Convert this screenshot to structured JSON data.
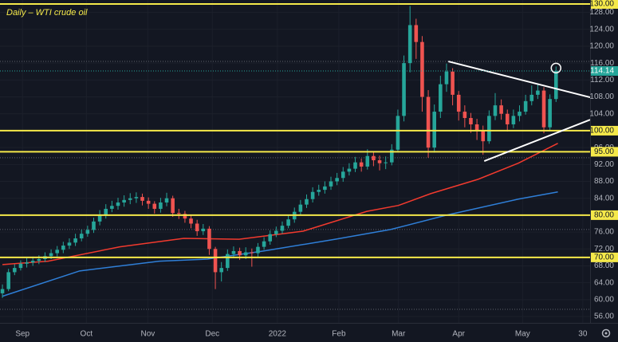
{
  "chart_data": {
    "type": "candlestick",
    "title": "Daily – WTI crude oil",
    "up_color": "#26a69a",
    "down_color": "#ef5350",
    "x": [
      0,
      1,
      2,
      3,
      4,
      5,
      6,
      7,
      8,
      9,
      10,
      11,
      12,
      13,
      14,
      15,
      16,
      17,
      18,
      19,
      20,
      21,
      22,
      23,
      24,
      25,
      26,
      27,
      28,
      29,
      30,
      31,
      32,
      33,
      34,
      35,
      36,
      37,
      38,
      39,
      40,
      41,
      42,
      43,
      44,
      45,
      46,
      47,
      48,
      49,
      50,
      51,
      52,
      53,
      54,
      55,
      56,
      57,
      58,
      59,
      60,
      61,
      62,
      63,
      64,
      65,
      66,
      67,
      68,
      69,
      70,
      71,
      72,
      73,
      74,
      75,
      76,
      77,
      78,
      79,
      80,
      81,
      82,
      83,
      84,
      85,
      86,
      87,
      88,
      89,
      90,
      91
    ],
    "open": [
      61.5,
      62.5,
      66.5,
      67.5,
      68.5,
      68.8,
      69.2,
      69.6,
      70.3,
      71.0,
      71.8,
      72.8,
      73.5,
      74.5,
      75.6,
      76.5,
      78.5,
      80.0,
      81.5,
      82.2,
      83.0,
      83.6,
      84.0,
      84.3,
      83.4,
      82.7,
      81.5,
      83.0,
      84.0,
      80.5,
      80.3,
      79.2,
      78.0,
      76.2,
      76.8,
      72.0,
      66.5,
      67.5,
      70.8,
      71.5,
      70.5,
      71.2,
      71.0,
      72.5,
      73.8,
      75.5,
      76.3,
      77.5,
      79.0,
      80.8,
      82.5,
      83.8,
      85.5,
      86.0,
      86.8,
      88.0,
      88.8,
      90.3,
      91.0,
      92.5,
      91.5,
      94.0,
      93.0,
      92.3,
      92.5,
      95.5,
      103.5,
      116.0,
      125.0,
      121.0,
      108.0,
      96.0,
      104.5,
      111.0,
      114.0,
      108.5,
      104.5,
      103.0,
      101.5,
      100.0,
      97.5,
      103.5,
      106.0,
      104.0,
      101.5,
      103.5,
      104.5,
      107.0,
      108.5,
      109.5,
      100.8,
      107.5
    ],
    "high": [
      63.6,
      67.3,
      68.4,
      69.3,
      69.8,
      70.2,
      70.5,
      71.2,
      71.9,
      72.7,
      73.7,
      74.5,
      75.6,
      76.6,
      77.5,
      79.4,
      81.2,
      82.6,
      83.4,
      84.1,
      84.7,
      85.2,
      85.4,
      85.1,
      84.2,
      83.3,
      84.1,
      85.3,
      84.6,
      81.5,
      81.0,
      80.1,
      78.9,
      77.9,
      77.4,
      72.5,
      68.9,
      71.9,
      72.6,
      72.3,
      72.4,
      72.1,
      73.4,
      74.8,
      76.4,
      77.3,
      78.5,
      80.0,
      81.8,
      83.6,
      84.9,
      86.6,
      87.2,
      88.0,
      89.1,
      90.0,
      91.4,
      92.3,
      93.8,
      93.4,
      95.6,
      95.0,
      94.1,
      93.9,
      96.8,
      105.0,
      117.8,
      129.5,
      126.5,
      122.4,
      109.6,
      106.2,
      113.0,
      115.9,
      114.8,
      109.4,
      106.0,
      104.2,
      102.8,
      101.2,
      104.8,
      108.9,
      107.4,
      105.0,
      105.0,
      106.0,
      108.5,
      110.7,
      111.0,
      110.3,
      108.6,
      115.2
    ],
    "low": [
      60.4,
      62.0,
      65.8,
      66.9,
      67.6,
      68.0,
      68.4,
      68.9,
      69.6,
      70.2,
      71.0,
      72.0,
      72.7,
      73.8,
      74.9,
      75.8,
      77.6,
      79.2,
      80.7,
      81.3,
      82.0,
      82.6,
      82.9,
      82.3,
      81.5,
      80.4,
      80.6,
      82.1,
      79.6,
      79.1,
      78.2,
      76.9,
      75.1,
      75.3,
      70.6,
      62.5,
      64.3,
      66.8,
      69.8,
      69.4,
      69.6,
      67.8,
      70.2,
      71.8,
      73.0,
      74.8,
      75.6,
      76.9,
      78.2,
      80.1,
      81.7,
      83.0,
      84.6,
      85.1,
      86.0,
      87.1,
      87.9,
      89.4,
      90.2,
      90.3,
      90.8,
      91.6,
      90.6,
      90.9,
      91.8,
      95.0,
      102.2,
      113.8,
      117.0,
      104.5,
      93.6,
      94.8,
      103.0,
      109.2,
      106.0,
      102.4,
      100.8,
      99.5,
      97.8,
      94.3,
      96.9,
      102.5,
      102.6,
      99.8,
      100.6,
      102.2,
      103.8,
      106.0,
      107.5,
      99.4,
      100.0,
      106.8
    ],
    "close": [
      62.5,
      66.5,
      67.5,
      68.5,
      68.8,
      69.2,
      69.6,
      70.3,
      71.0,
      71.8,
      72.8,
      73.5,
      74.5,
      75.6,
      76.5,
      78.5,
      80.0,
      81.5,
      82.2,
      83.0,
      83.6,
      84.0,
      84.3,
      83.4,
      82.7,
      81.5,
      83.0,
      84.0,
      80.5,
      80.3,
      79.2,
      78.0,
      76.2,
      76.8,
      72.0,
      66.5,
      67.5,
      70.8,
      71.5,
      70.5,
      71.2,
      71.0,
      72.5,
      73.8,
      75.5,
      76.3,
      77.5,
      79.0,
      80.8,
      82.5,
      83.8,
      85.5,
      86.0,
      86.8,
      88.0,
      88.8,
      90.3,
      91.0,
      92.5,
      91.5,
      94.0,
      93.0,
      92.3,
      92.5,
      95.5,
      103.5,
      116.0,
      125.0,
      121.0,
      108.0,
      96.0,
      104.5,
      111.0,
      114.0,
      108.5,
      104.5,
      103.0,
      101.5,
      100.0,
      97.5,
      103.5,
      106.0,
      104.0,
      101.5,
      103.5,
      104.5,
      107.0,
      108.5,
      109.5,
      100.8,
      107.5,
      114.14
    ],
    "xlim": [
      -0.4,
      96.6
    ],
    "xticks": [
      {
        "value": 3.3,
        "label": "Sep"
      },
      {
        "value": 13.8,
        "label": "Oct"
      },
      {
        "value": 23.9,
        "label": "Nov"
      },
      {
        "value": 34.5,
        "label": "Dec"
      },
      {
        "value": 45.2,
        "label": "2022"
      },
      {
        "value": 55.3,
        "label": "Feb"
      },
      {
        "value": 65.1,
        "label": "Mar"
      },
      {
        "value": 75.0,
        "label": "Apr"
      },
      {
        "value": 85.5,
        "label": "May"
      },
      {
        "value": 95.4,
        "label": "30"
      }
    ],
    "ylim": [
      54.5,
      130.94
    ],
    "yticks": [
      {
        "value": 56,
        "label": "56.00"
      },
      {
        "value": 60,
        "label": "60.00"
      },
      {
        "value": 64,
        "label": "64.00"
      },
      {
        "value": 68,
        "label": "68.00"
      },
      {
        "value": 72,
        "label": "72.00"
      },
      {
        "value": 76,
        "label": "76.00"
      },
      {
        "value": 80,
        "label": "80.00"
      },
      {
        "value": 84,
        "label": "84.00"
      },
      {
        "value": 88,
        "label": "88.00"
      },
      {
        "value": 92,
        "label": "92.00"
      },
      {
        "value": 96,
        "label": "96.00"
      },
      {
        "value": 100,
        "label": "100.00"
      },
      {
        "value": 104,
        "label": "104.00"
      },
      {
        "value": 108,
        "label": "108.00"
      },
      {
        "value": 112,
        "label": "112.00"
      },
      {
        "value": 116,
        "label": "116.00"
      },
      {
        "value": 120,
        "label": "120.00"
      },
      {
        "value": 124,
        "label": "124.00"
      },
      {
        "value": 128,
        "label": "128.00"
      }
    ],
    "grid": true,
    "lines": [
      {
        "color": "#f23a2e",
        "x": [
          0,
          7.5,
          19.3,
          29.8,
          38.9,
          49.4,
          59.9,
          65.1,
          70.4,
          78.2,
          84.8,
          91.3
        ],
        "values": [
          68.3,
          69.1,
          72.5,
          74.5,
          74.3,
          76.2,
          80.9,
          82.3,
          85.1,
          88.5,
          92.3,
          97.0
        ]
      },
      {
        "color": "#2f7fd8",
        "x": [
          0,
          12.7,
          25.8,
          33.7,
          42.9,
          54.7,
          63.8,
          73,
          84.8,
          91.3
        ],
        "values": [
          60.8,
          66.8,
          69.1,
          69.6,
          71.5,
          74.3,
          76.6,
          80.0,
          83.8,
          85.5
        ]
      }
    ],
    "trendlines": [
      {
        "color": "#ffffff",
        "x": [
          73.3,
          96.6
        ],
        "values": [
          116.4,
          107.9
        ]
      },
      {
        "color": "#ffffff",
        "x": [
          79.2,
          96.6
        ],
        "values": [
          92.8,
          102.6
        ]
      }
    ],
    "levels": {
      "color": "#f5e94a",
      "values": [
        130,
        100,
        95,
        80,
        70
      ],
      "value_labels": [
        "130.00",
        "100.00",
        "95.00",
        "80.00",
        "70.00"
      ]
    },
    "dotted_levels": [
      116.4,
      93.6,
      76.6,
      57.7
    ]
  }
}
